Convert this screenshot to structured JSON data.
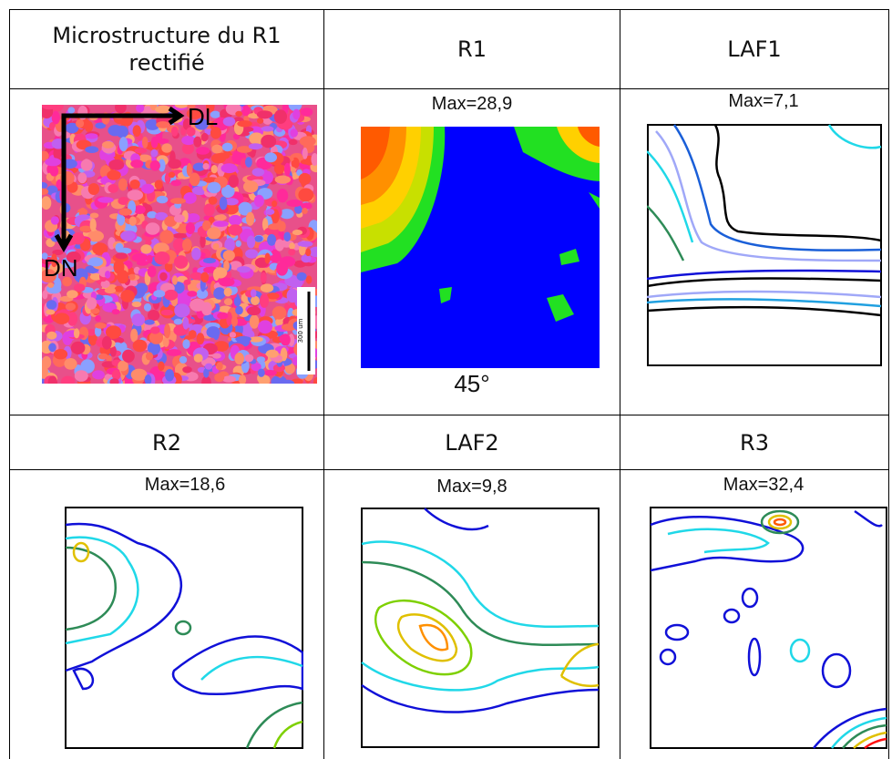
{
  "header_1": [
    "Microstructure du R1 rectifié",
    "R1",
    "LAF1"
  ],
  "panels_1": {
    "microstructure": {
      "axis_x": "DL",
      "axis_y": "DN",
      "scale_bar": "300 um"
    },
    "r1": {
      "max": "Max=28,9",
      "angle": "45°"
    },
    "laf1": {
      "max": "Max=7,1"
    }
  },
  "header_2": [
    "R2",
    "LAF2",
    "R3"
  ],
  "panels_2": [
    {
      "max": "Max=18,6"
    },
    {
      "max": "Max=9,8"
    },
    {
      "max": "Max=32,4"
    }
  ]
}
